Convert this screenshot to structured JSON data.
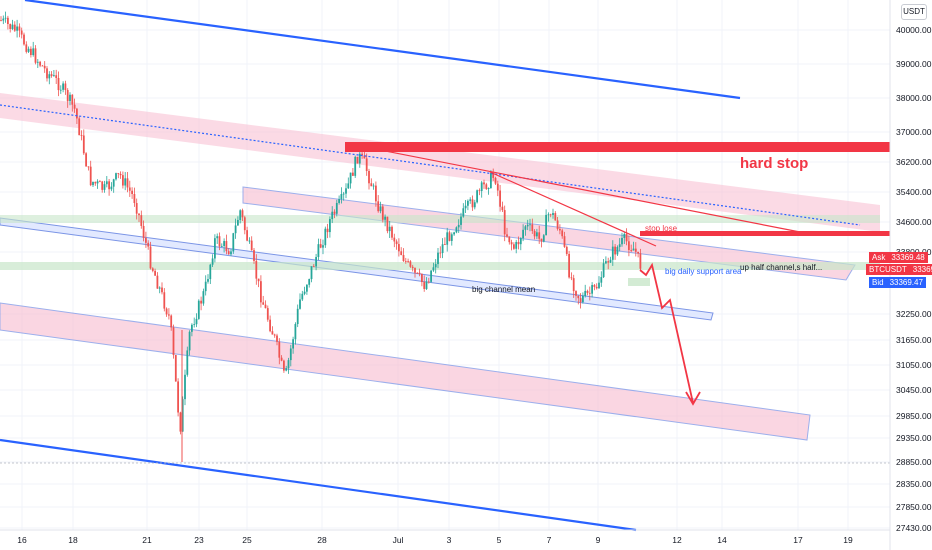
{
  "axis": {
    "unit_label": "USDT",
    "y_ticks": [
      "40000.00",
      "39000.00",
      "38000.00",
      "37000.00",
      "36200.00",
      "35400.00",
      "34600.00",
      "33800.00",
      "32250.00",
      "31650.00",
      "31050.00",
      "30450.00",
      "29850.00",
      "29350.00",
      "28850.00",
      "28350.00",
      "27850.00",
      "27430.00"
    ],
    "x_ticks": [
      "16",
      "18",
      "21",
      "23",
      "25",
      "28",
      "Jul",
      "3",
      "5",
      "7",
      "9",
      "12",
      "14",
      "17",
      "19"
    ]
  },
  "price_tags": {
    "ask_label": "Ask",
    "ask_value": "33369.48",
    "symbol_label": "BTCUSDT",
    "last_value": "33369.48",
    "bid_label": "Bid",
    "bid_value": "33369.47"
  },
  "annotations": {
    "hard_stop": "hard stop",
    "stop_lose": "stop lose",
    "big_daily_support": "big daily support area",
    "big_channel_mean": "big channel mean",
    "up_half_channel": "up half channel,s half..."
  },
  "colors": {
    "up": "#26a69a",
    "down": "#ef5350",
    "channel_blue": "#2962ff",
    "band_pink": "#f8bbd0",
    "band_green": "#c8e6c9",
    "hard_stop_red": "#f23645",
    "ask_bg": "#f23645",
    "bid_bg": "#2962ff"
  },
  "chart_data": {
    "type": "candlestick",
    "symbol": "BTCUSDT",
    "x_range": [
      "16",
      "19"
    ],
    "y_range": [
      27430,
      40800
    ],
    "last_price": 33369.48,
    "levels": {
      "hard_stop_zone": [
        36260,
        36600
      ],
      "stop_lose": 34420,
      "daily_support_area": [
        33280,
        33500
      ]
    }
  }
}
